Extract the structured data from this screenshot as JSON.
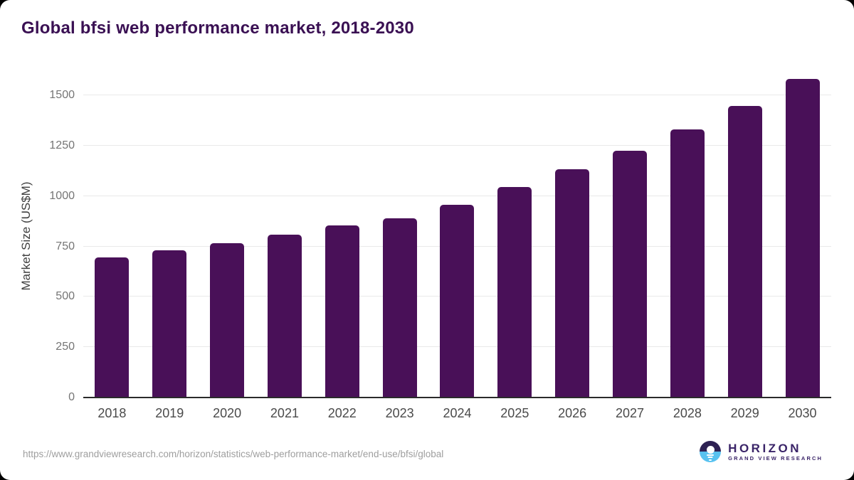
{
  "title": "Global bfsi web performance market, 2018-2030",
  "footer": {
    "source_url": "https://www.grandviewresearch.com/horizon/statistics/web-performance-market/end-use/bfsi/global"
  },
  "logo": {
    "name": "HORIZON",
    "subtitle": "GRAND VIEW RESEARCH"
  },
  "colors": {
    "bar": "#491058",
    "title": "#3a1053",
    "axis": "#2b2b2b",
    "grid": "#e9e9e9",
    "ytick": "#757575",
    "xtick": "#4a4a4a",
    "footer": "#9e9e9e",
    "logo_text": "#3a2468",
    "logo_dark": "#2e2153",
    "logo_blue": "#58c2f0"
  },
  "chart_data": {
    "type": "bar",
    "title": "Global bfsi web performance market, 2018-2030",
    "categories": [
      "2018",
      "2019",
      "2020",
      "2021",
      "2022",
      "2023",
      "2024",
      "2025",
      "2026",
      "2027",
      "2028",
      "2029",
      "2030"
    ],
    "values": [
      695,
      731,
      766,
      808,
      854,
      889,
      956,
      1045,
      1133,
      1225,
      1331,
      1447,
      1581
    ],
    "xlabel": "",
    "ylabel": "Market Size (US$M)",
    "ylim": [
      0,
      1500
    ],
    "yticks": [
      0,
      250,
      500,
      750,
      1000,
      1250,
      1500
    ],
    "grid": true,
    "legend": false,
    "bar_color": "#491058"
  }
}
